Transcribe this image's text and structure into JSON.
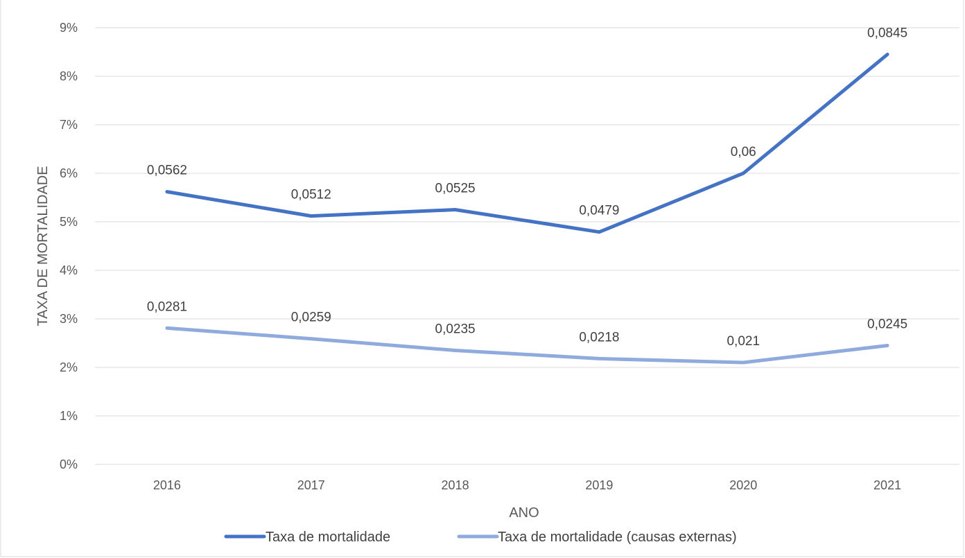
{
  "chart_data": {
    "type": "line",
    "categories": [
      "2016",
      "2017",
      "2018",
      "2019",
      "2020",
      "2021"
    ],
    "series": [
      {
        "name": "Taxa de mortalidade",
        "values": [
          0.0562,
          0.0512,
          0.0525,
          0.0479,
          0.06,
          0.0845
        ],
        "labels": [
          "0,0562",
          "0,0512",
          "0,0525",
          "0,0479",
          "0,06",
          "0,0845"
        ],
        "color": "#4472C4"
      },
      {
        "name": "Taxa de mortalidade (causas externas)",
        "values": [
          0.0281,
          0.0259,
          0.0235,
          0.0218,
          0.021,
          0.0245
        ],
        "labels": [
          "0,0281",
          "0,0259",
          "0,0235",
          "0,0218",
          "0,021",
          "0,0245"
        ],
        "color": "#8FAADC"
      }
    ],
    "ylim": [
      0,
      0.09
    ],
    "yticks": [
      "0%",
      "1%",
      "2%",
      "3%",
      "4%",
      "5%",
      "6%",
      "7%",
      "8%",
      "9%"
    ],
    "xlabel": "ANO",
    "ylabel": "TAXA DE MORTALIDADE",
    "grid": true,
    "legend_position": "bottom",
    "gridline_color": "#D9D9D9",
    "border_color": "#D9D9D9"
  }
}
